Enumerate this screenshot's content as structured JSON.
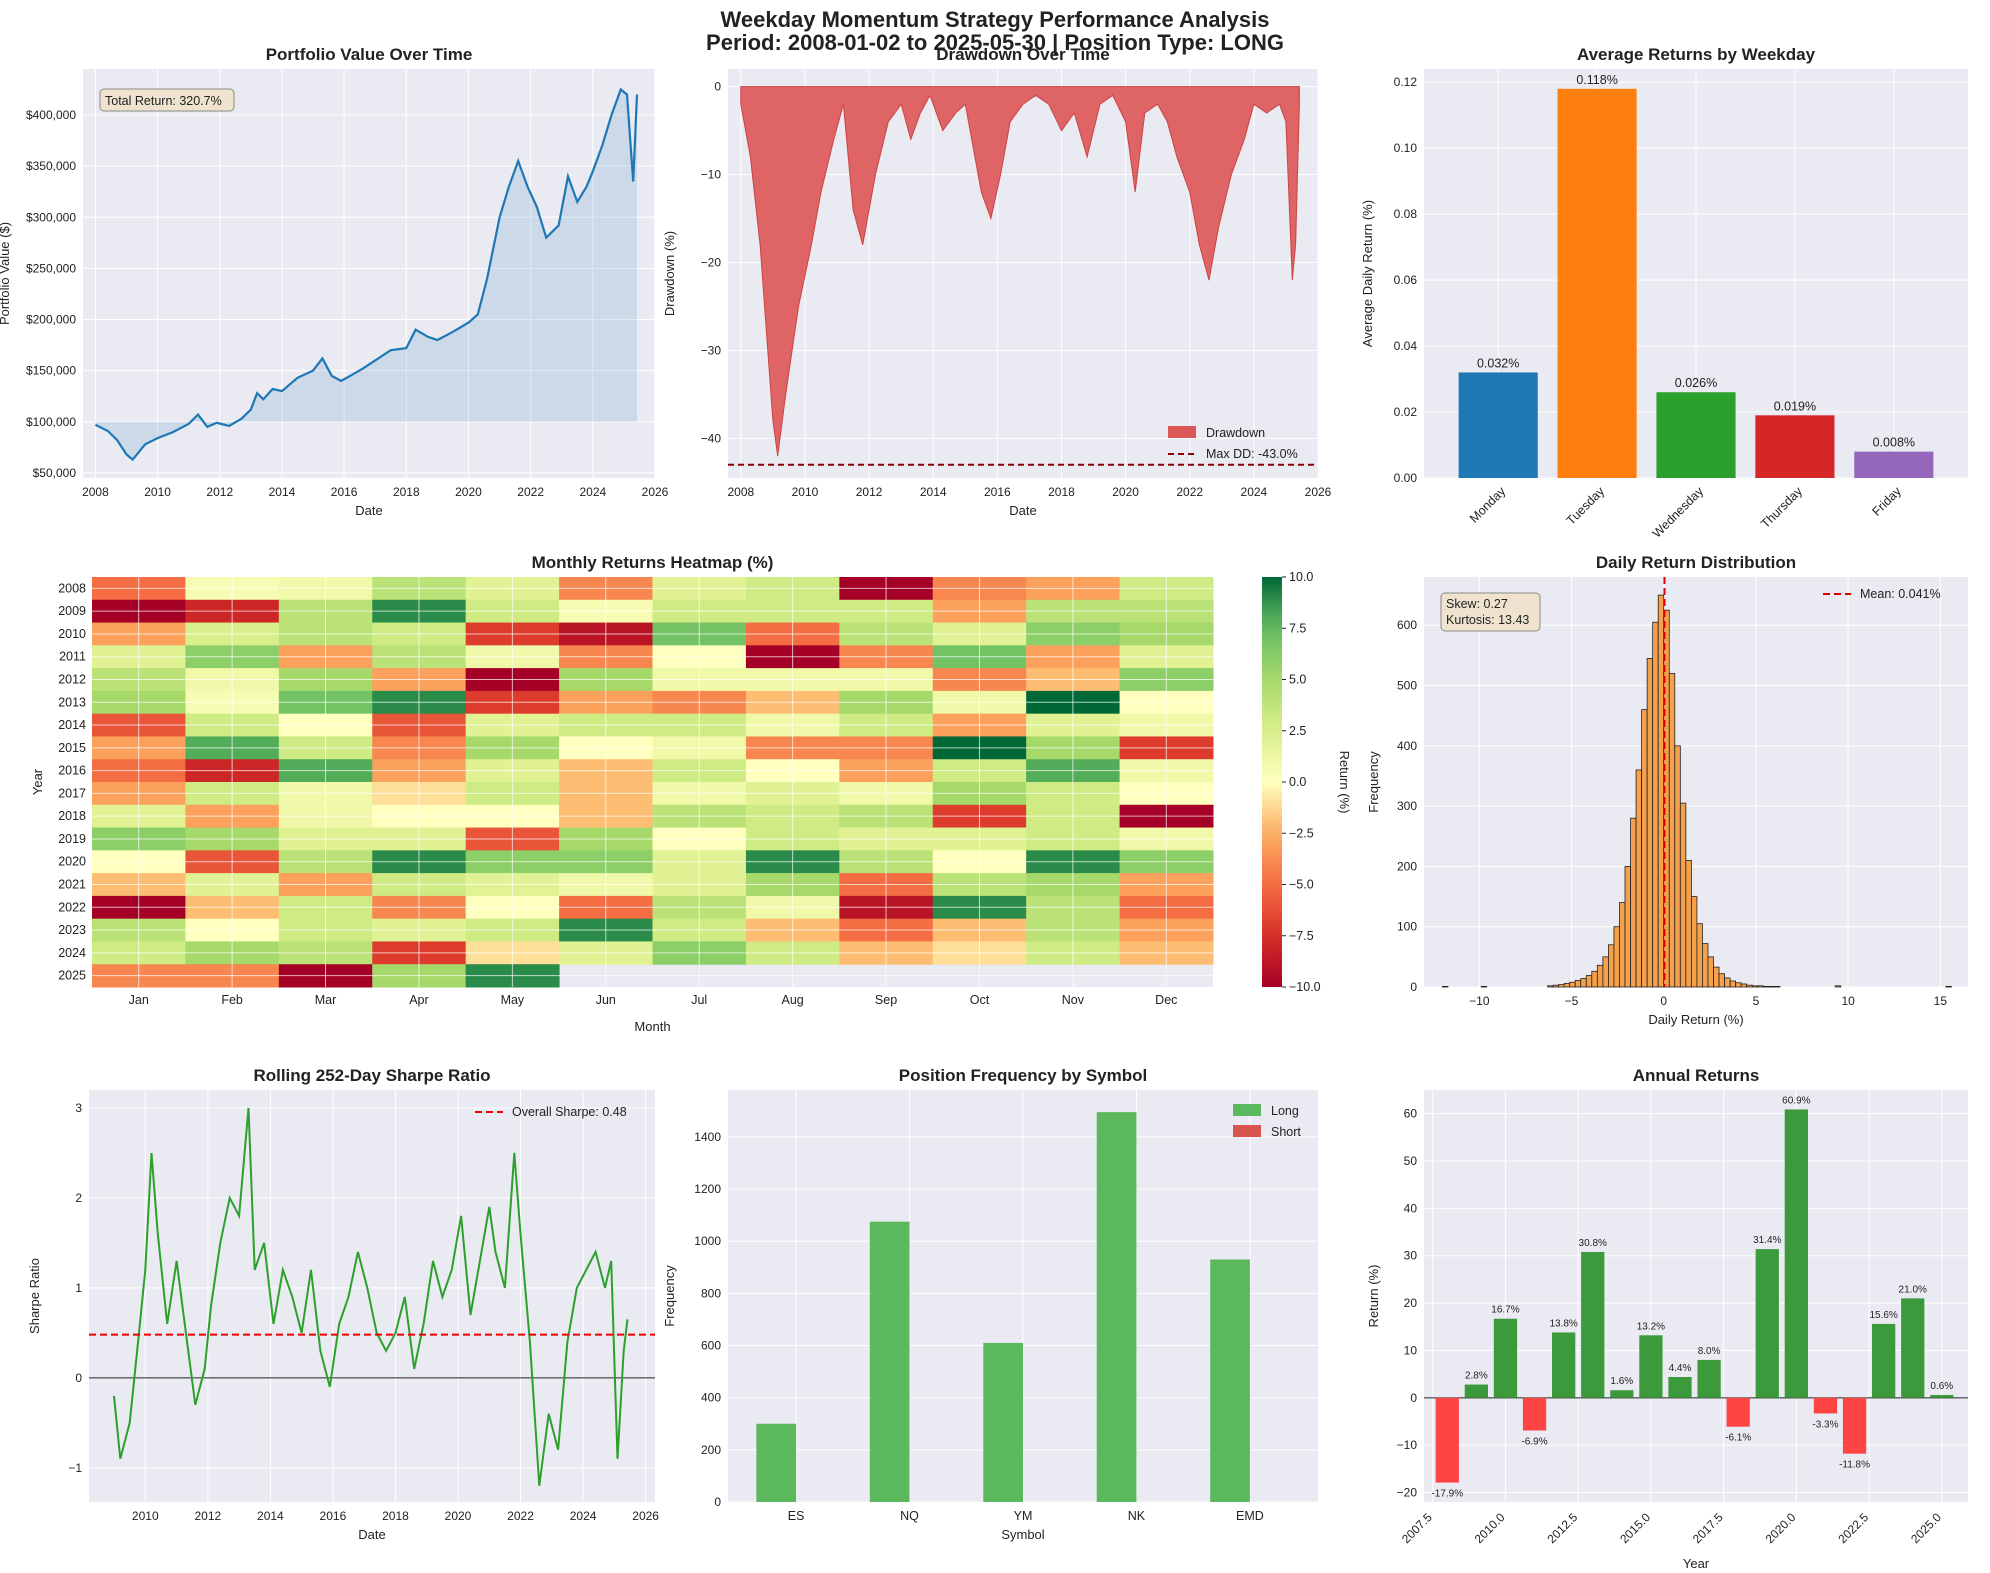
{
  "suptitle": {
    "line1": "Weekday Momentum Strategy Performance Analysis",
    "line2": "Period: 2008-01-02 to 2025-05-30 | Position Type: LONG"
  },
  "colors": {
    "bg": "#eaeaf2",
    "grid": "#ffffff",
    "blue": "#1f77b4",
    "orange": "#ff7f0e",
    "green": "#2ca02c",
    "red": "#d62728",
    "purple": "#9467bd",
    "dd_fill": "#dd5555",
    "long": "#5cb85c",
    "short": "#d9534f",
    "annual_pos": "#3c9a3c",
    "annual_neg": "#ff4444"
  },
  "chart_data": [
    {
      "type": "line",
      "id": "portfolio",
      "title": "Portfolio Value Over Time",
      "xlabel": "Date",
      "ylabel": "Portfolio Value ($)",
      "xlim": [
        2007.6,
        2026.0
      ],
      "ylim": [
        45000,
        445000
      ],
      "xticks": [
        2008,
        2010,
        2012,
        2014,
        2016,
        2018,
        2020,
        2022,
        2024,
        2026
      ],
      "yticks": [
        50000,
        100000,
        150000,
        200000,
        250000,
        300000,
        350000,
        400000
      ],
      "ytick_labels": [
        "$50,000",
        "$100,000",
        "$150,000",
        "$200,000",
        "$250,000",
        "$300,000",
        "$350,000",
        "$400,000"
      ],
      "baseline": 100000,
      "annotation": "Total Return: 320.7%",
      "x": [
        2008.0,
        2008.4,
        2008.7,
        2009.0,
        2009.2,
        2009.6,
        2010.0,
        2010.5,
        2011.0,
        2011.3,
        2011.6,
        2011.9,
        2012.3,
        2012.7,
        2013.0,
        2013.2,
        2013.4,
        2013.7,
        2014.0,
        2014.5,
        2015.0,
        2015.3,
        2015.6,
        2015.9,
        2016.2,
        2016.6,
        2017.0,
        2017.5,
        2018.0,
        2018.3,
        2018.7,
        2019.0,
        2019.5,
        2020.0,
        2020.3,
        2020.6,
        2021.0,
        2021.3,
        2021.6,
        2021.9,
        2022.2,
        2022.5,
        2022.9,
        2023.2,
        2023.5,
        2023.8,
        2024.0,
        2024.3,
        2024.6,
        2024.9,
        2025.1,
        2025.3,
        2025.42
      ],
      "values": [
        97000,
        91000,
        82000,
        68000,
        63000,
        78000,
        84000,
        90000,
        98000,
        107000,
        95000,
        99000,
        96000,
        103000,
        112000,
        128000,
        122000,
        132000,
        130000,
        143000,
        150000,
        162000,
        145000,
        140000,
        145000,
        152000,
        160000,
        170000,
        172000,
        190000,
        183000,
        180000,
        188000,
        197000,
        205000,
        240000,
        300000,
        330000,
        355000,
        330000,
        310000,
        280000,
        292000,
        340000,
        315000,
        330000,
        345000,
        370000,
        400000,
        425000,
        420000,
        335000,
        420000
      ]
    },
    {
      "type": "area",
      "id": "drawdown",
      "title": "Drawdown Over Time",
      "xlabel": "Date",
      "ylabel": "Drawdown (%)",
      "xlim": [
        2007.6,
        2026.0
      ],
      "ylim": [
        -44.5,
        2.0
      ],
      "xticks": [
        2008,
        2010,
        2012,
        2014,
        2016,
        2018,
        2020,
        2022,
        2024,
        2026
      ],
      "yticks": [
        0,
        -10,
        -20,
        -30,
        -40
      ],
      "ytick_labels": [
        "0",
        "−10",
        "−20",
        "−30",
        "−40"
      ],
      "max_dd": -43.0,
      "legend": [
        "Drawdown",
        "Max DD: -43.0%"
      ],
      "legend_loc": "lower-right",
      "x": [
        2008.0,
        2008.3,
        2008.6,
        2008.8,
        2009.0,
        2009.15,
        2009.4,
        2009.8,
        2010.2,
        2010.5,
        2010.9,
        2011.2,
        2011.5,
        2011.8,
        2012.2,
        2012.6,
        2013.0,
        2013.3,
        2013.6,
        2013.9,
        2014.3,
        2014.7,
        2015.0,
        2015.5,
        2015.8,
        2016.1,
        2016.4,
        2016.8,
        2017.2,
        2017.6,
        2018.0,
        2018.4,
        2018.8,
        2019.2,
        2019.6,
        2020.0,
        2020.3,
        2020.6,
        2021.0,
        2021.3,
        2021.6,
        2022.0,
        2022.3,
        2022.6,
        2022.9,
        2023.3,
        2023.7,
        2024.0,
        2024.4,
        2024.8,
        2025.0,
        2025.2,
        2025.3,
        2025.42
      ],
      "values": [
        -2,
        -8,
        -18,
        -28,
        -38,
        -42,
        -35,
        -25,
        -18,
        -12,
        -6,
        -2,
        -14,
        -18,
        -10,
        -4,
        -2,
        -6,
        -3,
        -1,
        -5,
        -3,
        -2,
        -12,
        -15,
        -10,
        -4,
        -2,
        -1,
        -2,
        -5,
        -3,
        -8,
        -2,
        -1,
        -4,
        -12,
        -3,
        -2,
        -4,
        -8,
        -12,
        -18,
        -22,
        -16,
        -10,
        -6,
        -2,
        -3,
        -2,
        -4,
        -22,
        -18,
        -2
      ]
    },
    {
      "type": "bar",
      "id": "weekday",
      "title": "Average Returns by Weekday",
      "xlabel": "",
      "ylabel": "Average Daily Return (%)",
      "ylim": [
        0,
        0.124
      ],
      "yticks": [
        0.0,
        0.02,
        0.04,
        0.06,
        0.08,
        0.1,
        0.12
      ],
      "ytick_labels": [
        "0.00",
        "0.02",
        "0.04",
        "0.06",
        "0.08",
        "0.10",
        "0.12"
      ],
      "categories": [
        "Monday",
        "Tuesday",
        "Wednesday",
        "Thursday",
        "Friday"
      ],
      "values": [
        0.032,
        0.118,
        0.026,
        0.019,
        0.008
      ],
      "labels": [
        "0.032%",
        "0.118%",
        "0.026%",
        "0.019%",
        "0.008%"
      ],
      "colors": [
        "#1f77b4",
        "#ff7f0e",
        "#2ca02c",
        "#d62728",
        "#9467bd"
      ]
    },
    {
      "type": "heatmap",
      "id": "monthly",
      "title": "Monthly Returns Heatmap (%)",
      "xlabel": "Month",
      "ylabel": "Year",
      "colorbar_label": "Return (%)",
      "vmin": -10,
      "vmax": 10,
      "colorbar_ticks": [
        10.0,
        7.5,
        5.0,
        2.5,
        0.0,
        -2.5,
        -5.0,
        -7.5,
        -10.0
      ],
      "colorbar_tick_labels": [
        "10.0",
        "7.5",
        "5.0",
        "2.5",
        "0.0",
        "−2.5",
        "−5.0",
        "−7.5",
        "−10.0"
      ],
      "months": [
        "Jan",
        "Feb",
        "Mar",
        "Apr",
        "May",
        "Jun",
        "Jul",
        "Aug",
        "Sep",
        "Oct",
        "Nov",
        "Dec"
      ],
      "years": [
        "2008",
        "2009",
        "2010",
        "2011",
        "2012",
        "2013",
        "2014",
        "2015",
        "2016",
        "2017",
        "2018",
        "2019",
        "2020",
        "2021",
        "2022",
        "2023",
        "2024",
        "2025"
      ],
      "values": [
        [
          -5,
          0.5,
          1,
          4,
          2,
          -4,
          2,
          3,
          -10,
          -4,
          -3,
          3
        ],
        [
          -10,
          -8,
          4,
          9,
          3,
          0.5,
          3,
          3,
          3,
          -3,
          4,
          4
        ],
        [
          -3,
          2.5,
          4,
          3,
          -7,
          -9,
          7,
          -5,
          4,
          2,
          6,
          5
        ],
        [
          2,
          6,
          -3,
          4,
          1,
          -4,
          0,
          -10,
          -4,
          7,
          -3,
          2
        ],
        [
          4,
          1,
          5,
          -3,
          -10,
          5,
          1,
          1,
          1,
          -4,
          -2,
          6
        ],
        [
          5,
          0.5,
          7,
          9,
          -7,
          -3,
          -4,
          -2,
          5,
          1,
          10,
          0
        ],
        [
          -6,
          3,
          0,
          -6,
          2,
          3,
          3,
          1,
          3,
          -3,
          2,
          1
        ],
        [
          -3,
          8,
          3,
          -4,
          5,
          0,
          1,
          -4,
          -4,
          10,
          5,
          -7
        ],
        [
          -5,
          -8,
          8,
          -3,
          2,
          -2,
          3,
          0,
          -3,
          3,
          8,
          1
        ],
        [
          -3,
          3,
          1,
          -1,
          3,
          -2,
          1,
          2,
          1,
          5,
          3,
          0
        ],
        [
          2,
          -3,
          1,
          0,
          0,
          -2,
          4,
          3,
          4,
          -7,
          3,
          -10
        ],
        [
          6,
          5,
          2,
          2,
          -6,
          5,
          0,
          3,
          2,
          2,
          3,
          1
        ],
        [
          0,
          -6,
          4,
          9,
          6,
          6,
          2,
          9,
          4,
          0,
          9,
          6
        ],
        [
          -2,
          2,
          -3,
          3,
          2,
          1,
          2,
          5,
          -5,
          4,
          5,
          -3
        ],
        [
          -10,
          -2,
          3,
          -4,
          0,
          -5,
          4,
          1,
          -9,
          9,
          4,
          -5
        ],
        [
          4,
          0,
          3,
          2,
          3,
          9,
          3,
          -2,
          -5,
          -2,
          4,
          -3
        ],
        [
          3,
          5,
          4,
          -7,
          -1,
          2,
          6,
          3,
          -2,
          -1,
          3,
          -2
        ],
        [
          -4,
          -4,
          -10,
          5,
          9,
          null,
          null,
          null,
          null,
          null,
          null,
          null
        ]
      ]
    },
    {
      "type": "bar",
      "id": "distribution",
      "title": "Daily Return Distribution",
      "xlabel": "Daily Return (%)",
      "ylabel": "Frequency",
      "xlim": [
        -13,
        16.5
      ],
      "ylim": [
        0,
        680
      ],
      "xticks": [
        -10,
        -5,
        0,
        5,
        10,
        15
      ],
      "xtick_labels": [
        "−10",
        "−5",
        "0",
        "5",
        "10",
        "15"
      ],
      "yticks": [
        0,
        100,
        200,
        300,
        400,
        500,
        600
      ],
      "mean": 0.041,
      "legend": [
        "Mean: 0.041%"
      ],
      "annotation": [
        "Skew: 0.27",
        "Kurtosis: 13.43"
      ],
      "bin_width": 0.3,
      "x": [
        -12.0,
        -9.9,
        -6.3,
        -6.0,
        -5.7,
        -5.4,
        -5.1,
        -4.8,
        -4.5,
        -4.2,
        -3.9,
        -3.6,
        -3.3,
        -3.0,
        -2.7,
        -2.4,
        -2.1,
        -1.8,
        -1.5,
        -1.2,
        -0.9,
        -0.6,
        -0.3,
        0.0,
        0.3,
        0.6,
        0.9,
        1.2,
        1.5,
        1.8,
        2.1,
        2.4,
        2.7,
        3.0,
        3.3,
        3.6,
        3.9,
        4.2,
        4.5,
        4.8,
        5.1,
        5.4,
        5.7,
        6.0,
        9.3,
        15.3
      ],
      "values": [
        1,
        1,
        2,
        3,
        4,
        6,
        8,
        11,
        14,
        19,
        26,
        36,
        50,
        70,
        100,
        140,
        200,
        280,
        360,
        460,
        545,
        605,
        650,
        625,
        520,
        400,
        305,
        210,
        150,
        105,
        72,
        50,
        33,
        22,
        15,
        10,
        7,
        5,
        3,
        2,
        2,
        1,
        1,
        1,
        2,
        1
      ]
    },
    {
      "type": "line",
      "id": "sharpe",
      "title": "Rolling 252-Day Sharpe Ratio",
      "xlabel": "Date",
      "ylabel": "Sharpe Ratio",
      "xlim": [
        2008.2,
        2026.3
      ],
      "ylim": [
        -1.38,
        3.2
      ],
      "xticks": [
        2010,
        2012,
        2014,
        2016,
        2018,
        2020,
        2022,
        2024,
        2026
      ],
      "yticks": [
        3,
        2,
        1,
        0,
        -1
      ],
      "ytick_labels": [
        "3",
        "2",
        "1",
        "0",
        "−1"
      ],
      "overall_sharpe": 0.48,
      "legend": [
        "Overall Sharpe: 0.48"
      ],
      "x": [
        2009.0,
        2009.2,
        2009.5,
        2009.8,
        2010.0,
        2010.2,
        2010.4,
        2010.7,
        2011.0,
        2011.3,
        2011.6,
        2011.9,
        2012.1,
        2012.4,
        2012.7,
        2013.0,
        2013.3,
        2013.5,
        2013.8,
        2014.1,
        2014.4,
        2014.7,
        2015.0,
        2015.3,
        2015.6,
        2015.9,
        2016.2,
        2016.5,
        2016.8,
        2017.1,
        2017.4,
        2017.7,
        2018.0,
        2018.3,
        2018.6,
        2018.9,
        2019.2,
        2019.5,
        2019.8,
        2020.1,
        2020.4,
        2020.7,
        2021.0,
        2021.2,
        2021.5,
        2021.8,
        2022.0,
        2022.3,
        2022.6,
        2022.9,
        2023.2,
        2023.5,
        2023.8,
        2024.1,
        2024.4,
        2024.7,
        2024.9,
        2025.1,
        2025.3,
        2025.42
      ],
      "values": [
        -0.2,
        -0.9,
        -0.5,
        0.5,
        1.2,
        2.5,
        1.6,
        0.6,
        1.3,
        0.5,
        -0.3,
        0.1,
        0.8,
        1.5,
        2.0,
        1.8,
        3.0,
        1.2,
        1.5,
        0.6,
        1.2,
        0.9,
        0.5,
        1.2,
        0.3,
        -0.1,
        0.6,
        0.9,
        1.4,
        1.0,
        0.5,
        0.3,
        0.5,
        0.9,
        0.1,
        0.6,
        1.3,
        0.9,
        1.2,
        1.8,
        0.7,
        1.3,
        1.9,
        1.4,
        1.0,
        2.5,
        1.6,
        0.4,
        -1.2,
        -0.4,
        -0.8,
        0.4,
        1.0,
        1.2,
        1.4,
        1.0,
        1.3,
        -0.9,
        0.3,
        0.65
      ]
    },
    {
      "type": "bar",
      "id": "positions",
      "title": "Position Frequency by Symbol",
      "xlabel": "Symbol",
      "ylabel": "Frequency",
      "ylim": [
        0,
        1580
      ],
      "yticks": [
        0,
        200,
        400,
        600,
        800,
        1000,
        1200,
        1400
      ],
      "categories": [
        "ES",
        "NQ",
        "YM",
        "NK",
        "EMD"
      ],
      "series": [
        {
          "name": "Long",
          "values": [
            300,
            1075,
            610,
            1495,
            930
          ]
        },
        {
          "name": "Short",
          "values": [
            0,
            0,
            0,
            0,
            0
          ]
        }
      ],
      "legend_loc": "top-right"
    },
    {
      "type": "bar",
      "id": "annual",
      "title": "Annual Returns",
      "xlabel": "Year",
      "ylabel": "Return (%)",
      "xlim": [
        2007.2,
        2025.9
      ],
      "ylim": [
        -22,
        65
      ],
      "xticks": [
        2007.5,
        2010.0,
        2012.5,
        2015.0,
        2017.5,
        2020.0,
        2022.5,
        2025.0
      ],
      "xtick_labels": [
        "2007.5",
        "2010.0",
        "2012.5",
        "2015.0",
        "2017.5",
        "2020.0",
        "2022.5",
        "2025.0"
      ],
      "yticks": [
        60,
        50,
        40,
        30,
        20,
        10,
        0,
        -10,
        -20
      ],
      "ytick_labels": [
        "60",
        "50",
        "40",
        "30",
        "20",
        "10",
        "0",
        "−10",
        "−20"
      ],
      "x": [
        2008,
        2009,
        2010,
        2011,
        2012,
        2013,
        2014,
        2015,
        2016,
        2017,
        2018,
        2019,
        2020,
        2021,
        2022,
        2023,
        2024,
        2025
      ],
      "values": [
        -17.9,
        2.8,
        16.7,
        -6.9,
        13.8,
        30.8,
        1.6,
        13.2,
        4.4,
        8.0,
        -6.1,
        31.4,
        60.9,
        -3.3,
        -11.8,
        15.6,
        21.0,
        0.6
      ],
      "labels": [
        "-17.9%",
        "2.8%",
        "16.7%",
        "-6.9%",
        "13.8%",
        "30.8%",
        "1.6%",
        "13.2%",
        "4.4%",
        "8.0%",
        "-6.1%",
        "31.4%",
        "60.9%",
        "-3.3%",
        "-11.8%",
        "15.6%",
        "21.0%",
        "0.6%"
      ]
    }
  ]
}
